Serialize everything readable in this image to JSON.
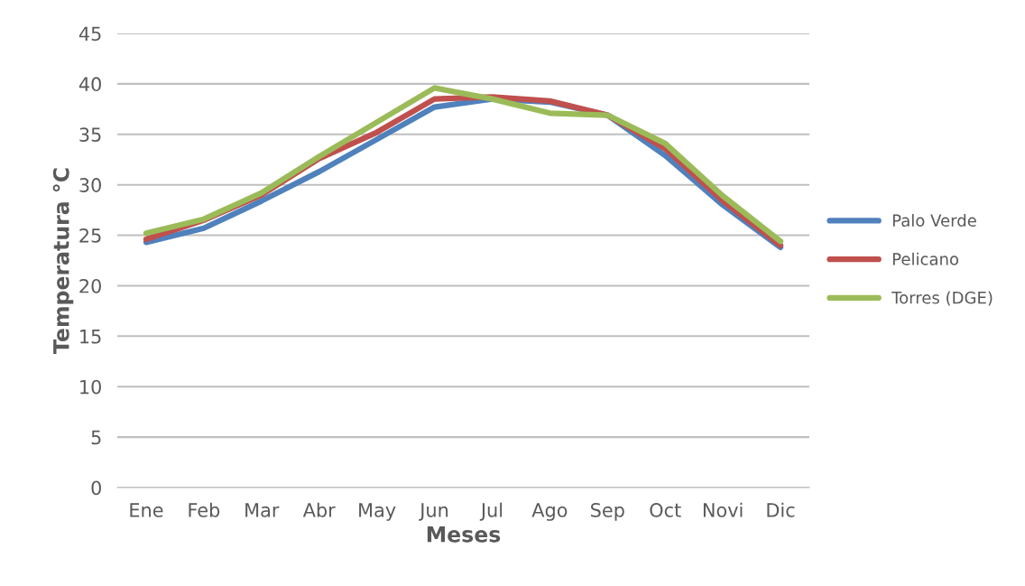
{
  "chart_data": {
    "type": "line",
    "xlabel": "Meses",
    "ylabel": "Temperatura °C",
    "categories": [
      "Ene",
      "Feb",
      "Mar",
      "Abr",
      "May",
      "Jun",
      "Jul",
      "Ago",
      "Sep",
      "Oct",
      "Novi",
      "Dic"
    ],
    "series": [
      {
        "name": "Palo Verde",
        "color": "#4f81bd",
        "values": [
          24.3,
          25.7,
          28.4,
          31.3,
          34.5,
          37.7,
          38.5,
          38.2,
          36.9,
          32.9,
          28.0,
          23.8
        ]
      },
      {
        "name": "Pelicano",
        "color": "#c0504d",
        "values": [
          24.6,
          26.5,
          29.0,
          32.6,
          35.2,
          38.5,
          38.7,
          38.3,
          36.9,
          33.6,
          28.4,
          24.0
        ]
      },
      {
        "name": "Torres (DGE)",
        "color": "#9bbb59",
        "values": [
          25.2,
          26.6,
          29.2,
          32.8,
          36.2,
          39.6,
          38.5,
          37.1,
          36.9,
          34.1,
          28.9,
          24.4
        ]
      }
    ],
    "ylim": [
      0,
      45
    ],
    "yticks": [
      0,
      5,
      10,
      15,
      20,
      25,
      30,
      35,
      40,
      45
    ],
    "grid": "y",
    "legend": "right",
    "marker": "none",
    "line_style": "solid"
  }
}
